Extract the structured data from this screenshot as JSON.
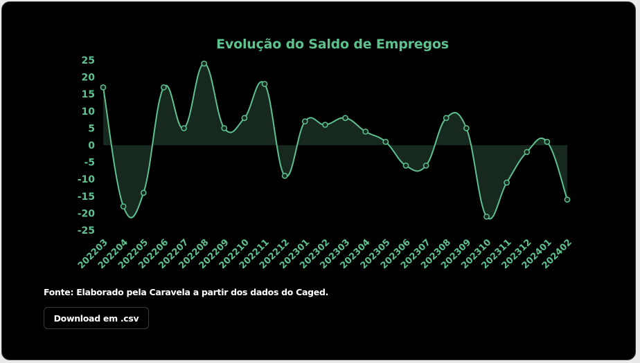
{
  "chart_data": {
    "type": "area",
    "title": "Evolução do Saldo de Empregos",
    "categories": [
      "202203",
      "202204",
      "202205",
      "202206",
      "202207",
      "202208",
      "202209",
      "202210",
      "202211",
      "202212",
      "202301",
      "202302",
      "202303",
      "202304",
      "202305",
      "202306",
      "202307",
      "202308",
      "202309",
      "202310",
      "202311",
      "202312",
      "202401",
      "202402"
    ],
    "values": [
      17,
      -18,
      -14,
      17,
      5,
      24,
      5,
      8,
      18,
      -9,
      7,
      6,
      8,
      4,
      1,
      -6,
      -6,
      8,
      5,
      -21,
      -11,
      -2,
      1,
      -16
    ],
    "yticks": [
      25,
      20,
      15,
      10,
      5,
      0,
      -5,
      -10,
      -15,
      -20,
      -25
    ],
    "ylim": [
      -25,
      25
    ],
    "xlabel": "",
    "ylabel": "",
    "grid": false,
    "legend": "none",
    "line_color": "#5ec28f",
    "fill_color": "#17281f"
  },
  "source_text": "Fonte: Elaborado pela Caravela a partir dos dados do Caged.",
  "download_label": "Download em .csv"
}
